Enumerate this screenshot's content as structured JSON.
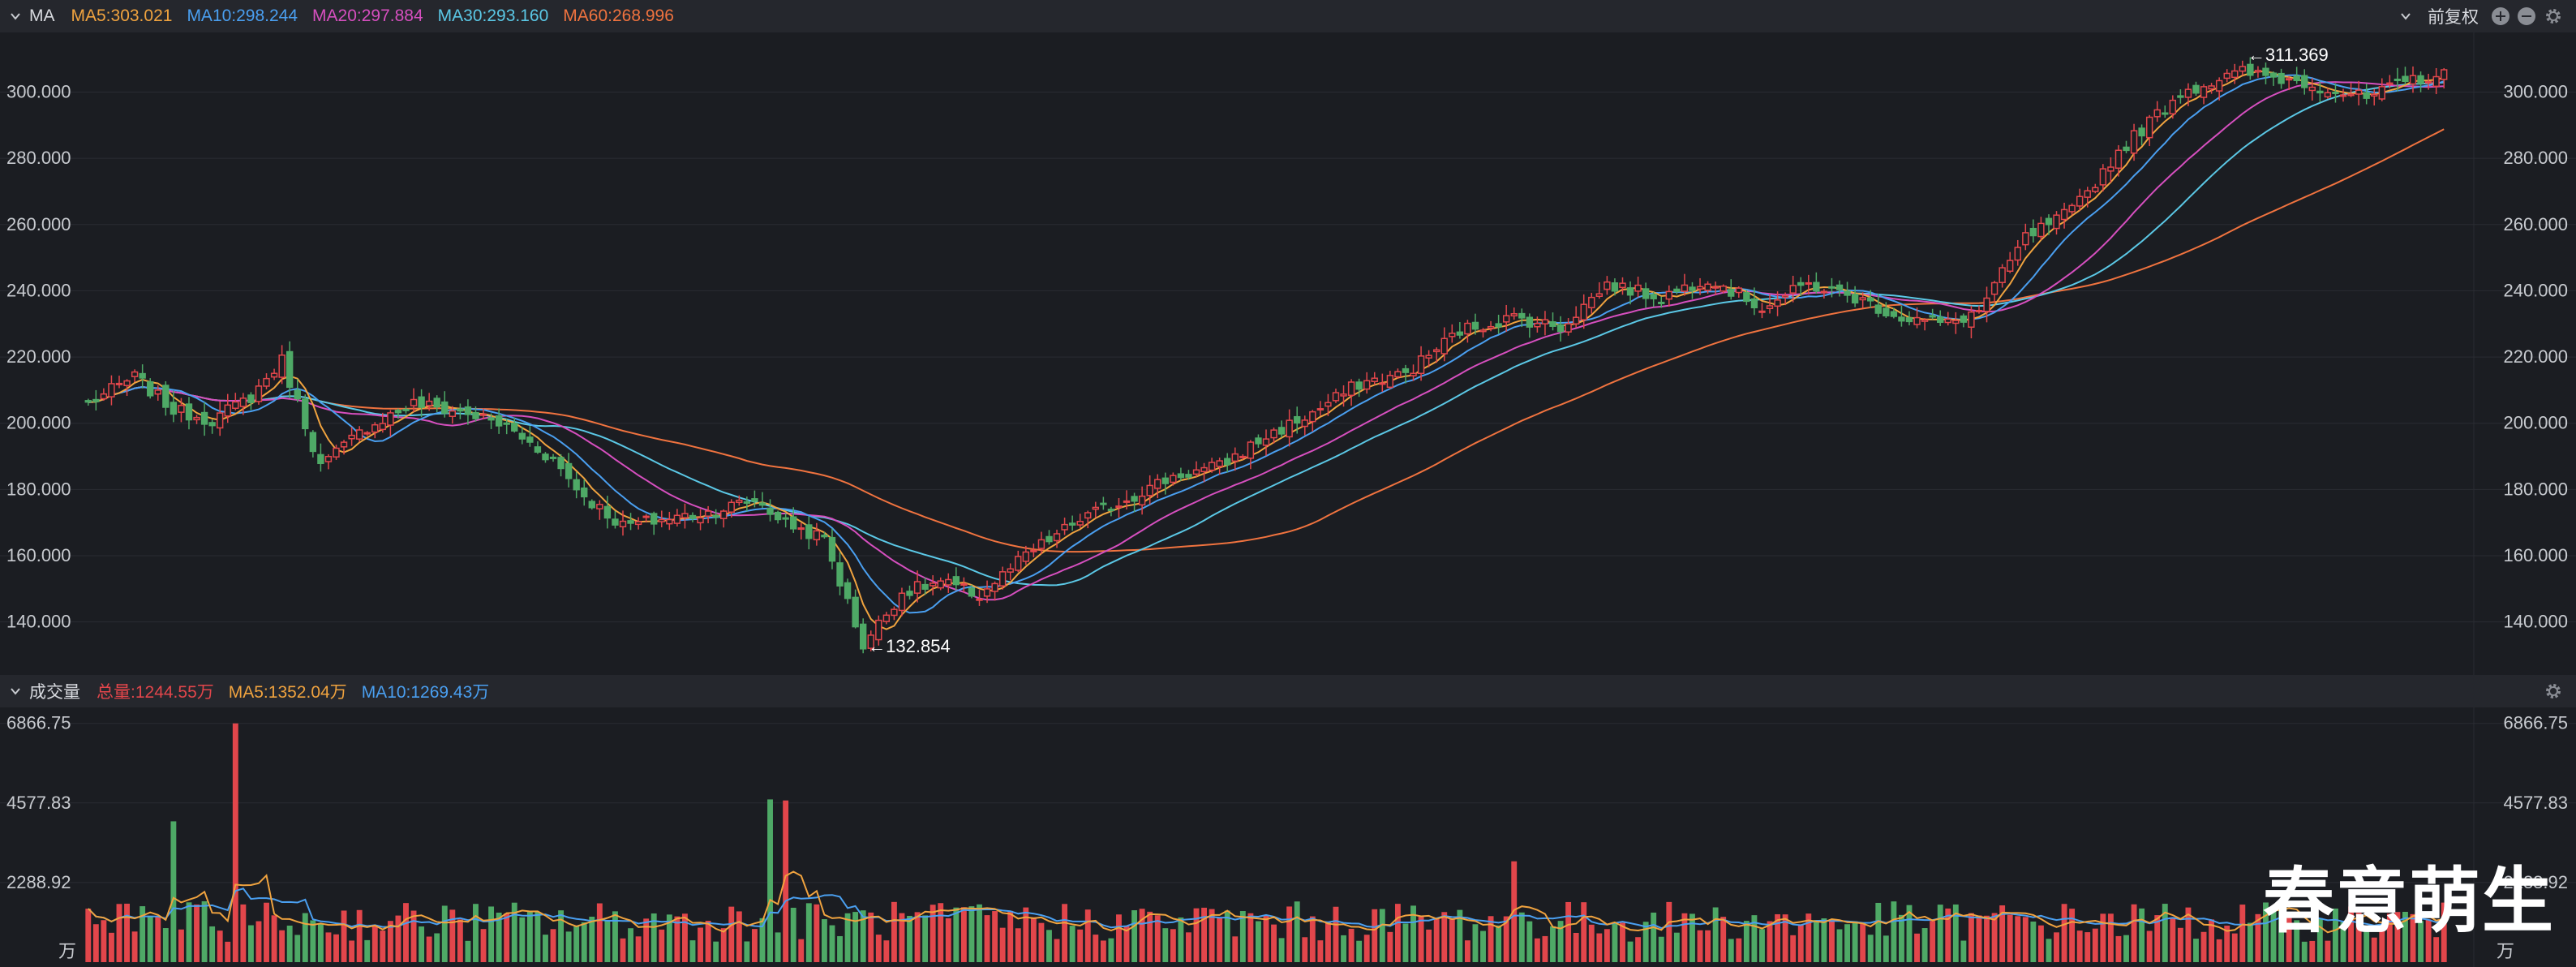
{
  "colors": {
    "up": "#e2464b",
    "down": "#4ea966",
    "ma5": "#f0a33f",
    "ma10": "#4a9ff0",
    "ma20": "#d64fbf",
    "ma30": "#5bc8e6",
    "ma60": "#f0733f",
    "total": "#e2464b"
  },
  "top_bar": {
    "title": "MA",
    "items": [
      {
        "key": "ma5",
        "text": "MA5:303.021"
      },
      {
        "key": "ma10",
        "text": "MA10:298.244"
      },
      {
        "key": "ma20",
        "text": "MA20:297.884"
      },
      {
        "key": "ma30",
        "text": "MA30:293.160"
      },
      {
        "key": "ma60",
        "text": "MA60:268.996"
      }
    ],
    "adjust_label": "前复权",
    "icons": [
      "chevron-down-icon",
      "zoom-in-icon",
      "zoom-out-icon",
      "gear-icon"
    ]
  },
  "vol_bar": {
    "title": "成交量",
    "items": [
      {
        "key": "total",
        "text": "总量:1244.55万"
      },
      {
        "key": "ma5",
        "text": "MA5:1352.04万"
      },
      {
        "key": "ma10",
        "text": "MA10:1269.43万"
      }
    ]
  },
  "watermark": "春意萌生",
  "chart_data": [
    {
      "type": "candlestick",
      "y_ticks": [
        "140.000",
        "160.000",
        "180.000",
        "200.000",
        "220.000",
        "240.000",
        "260.000",
        "280.000",
        "300.000"
      ],
      "y_tick_values": [
        140,
        160,
        180,
        200,
        220,
        240,
        260,
        280,
        300
      ],
      "ylim": [
        124,
        318
      ],
      "grid": true,
      "annotations": [
        {
          "label": "311.369",
          "value": 311.369
        },
        {
          "label": "132.854",
          "value": 132.854
        }
      ],
      "close_anchors": [
        [
          0,
          206
        ],
        [
          6,
          214
        ],
        [
          11,
          204
        ],
        [
          16,
          201
        ],
        [
          21,
          208
        ],
        [
          25,
          219
        ],
        [
          30,
          187
        ],
        [
          36,
          199
        ],
        [
          42,
          206
        ],
        [
          49,
          203
        ],
        [
          54,
          199
        ],
        [
          60,
          189
        ],
        [
          64,
          178
        ],
        [
          69,
          169
        ],
        [
          74,
          171
        ],
        [
          80,
          173
        ],
        [
          86,
          177
        ],
        [
          90,
          170
        ],
        [
          95,
          165
        ],
        [
          100,
          133
        ],
        [
          105,
          149
        ],
        [
          110,
          152
        ],
        [
          115,
          148
        ],
        [
          121,
          160
        ],
        [
          128,
          171
        ],
        [
          133,
          176
        ],
        [
          140,
          184
        ],
        [
          146,
          187
        ],
        [
          152,
          196
        ],
        [
          158,
          203
        ],
        [
          164,
          212
        ],
        [
          170,
          215
        ],
        [
          177,
          228
        ],
        [
          184,
          232
        ],
        [
          190,
          229
        ],
        [
          196,
          242
        ],
        [
          203,
          238
        ],
        [
          209,
          244
        ],
        [
          216,
          235
        ],
        [
          222,
          242
        ],
        [
          228,
          238
        ],
        [
          234,
          232
        ],
        [
          240,
          230
        ],
        [
          244,
          234
        ],
        [
          250,
          256
        ],
        [
          256,
          264
        ],
        [
          262,
          282
        ],
        [
          270,
          300
        ],
        [
          278,
          306
        ],
        [
          286,
          303
        ],
        [
          294,
          298
        ],
        [
          300,
          304
        ],
        [
          304,
          305
        ]
      ],
      "ma_end_values": {
        "ma5": 303.021,
        "ma10": 298.244,
        "ma20": 297.884,
        "ma30": 293.16,
        "ma60": 268.996
      }
    },
    {
      "type": "bar",
      "y_ticks": [
        "2288.92",
        "4577.83",
        "6866.75"
      ],
      "y_tick_values": [
        2288.92,
        4577.83,
        6866.75
      ],
      "ylim": [
        0,
        7000
      ],
      "unit": "万",
      "peaks": [
        {
          "index": 19,
          "value": 6866.75
        },
        {
          "index": 11,
          "value": 4050
        },
        {
          "index": 88,
          "value": 4680
        },
        {
          "index": 90,
          "value": 4650
        },
        {
          "index": 184,
          "value": 2900
        }
      ],
      "typical_value": 1300
    }
  ]
}
